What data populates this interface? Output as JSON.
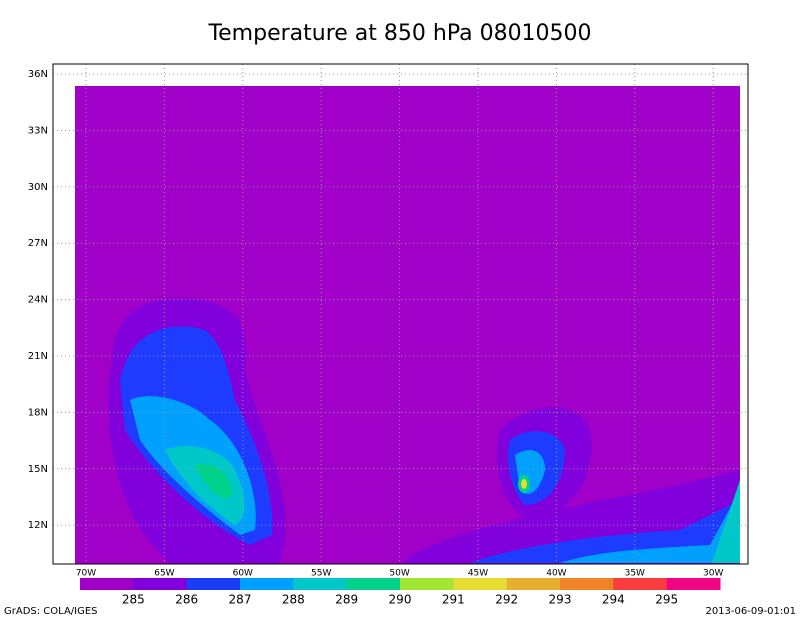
{
  "title": "Temperature  at 850 hPa 08010500",
  "lat_labels": [
    "36N",
    "33N",
    "30N",
    "27N",
    "24N",
    "21N",
    "18N",
    "15N",
    "12N"
  ],
  "lon_labels": [
    "70W",
    "65W",
    "60W",
    "55W",
    "50W",
    "45W",
    "40W",
    "35W",
    "30W"
  ],
  "colorbar": {
    "labels": [
      "285",
      "286",
      "287",
      "288",
      "289",
      "290",
      "291",
      "292",
      "293",
      "294",
      "295"
    ],
    "colors": [
      "#a000c8",
      "#8200dc",
      "#1e3cff",
      "#00a0ff",
      "#00c8c8",
      "#00d28c",
      "#a0e632",
      "#e6dc32",
      "#e6af2d",
      "#f08228",
      "#fa3c3c",
      "#f00082"
    ]
  },
  "footer": {
    "left": "GrADS: COLA/IGES",
    "right": "2013-06-09-01:01"
  }
}
